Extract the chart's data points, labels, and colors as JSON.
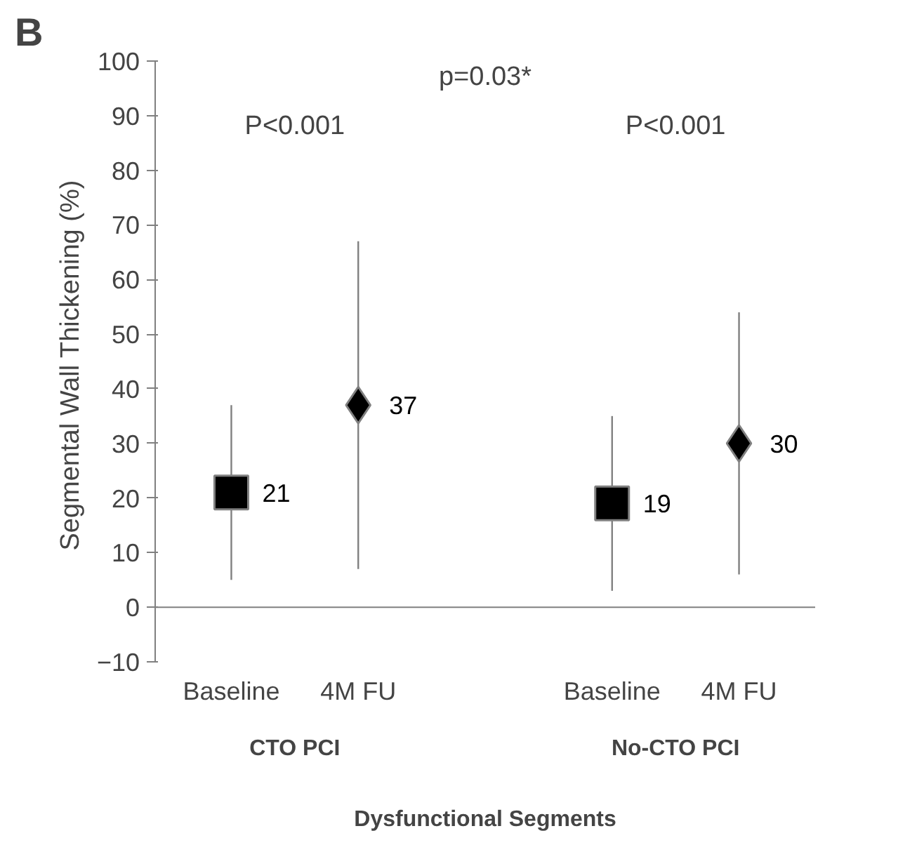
{
  "chart_data": {
    "type": "scatter",
    "xlabel": "Dysfunctional Segments",
    "ylabel": "Segmental Wall Thickening  (%)",
    "categories": [
      "Baseline",
      "4M FU",
      null,
      "Baseline",
      "4M FU"
    ],
    "series": [
      {
        "color": "#000000",
        "marker": "square",
        "values": [
          21,
          null,
          null,
          19,
          null
        ],
        "errors": [
          [
            5,
            37
          ],
          null,
          null,
          [
            3,
            35
          ],
          null
        ]
      },
      {
        "color": "#000000",
        "marker": "diamond",
        "values": [
          null,
          37,
          null,
          null,
          30
        ],
        "errors": [
          null,
          [
            7,
            67
          ],
          null,
          null,
          [
            6,
            54
          ]
        ]
      }
    ],
    "ylim": [
      -10,
      100
    ],
    "yticks": [
      -10,
      0,
      10,
      20,
      30,
      40,
      50,
      60,
      70,
      80,
      90,
      100
    ],
    "ref_lines": [
      {
        "axis": "y",
        "value": 0,
        "color": "#808080"
      }
    ],
    "data_labels": true,
    "grid": false,
    "legend": false,
    "annotations": [
      "B",
      "P<0.001",
      "p=0.03*",
      "P<0.001",
      "CTO PCI",
      "No-CTO PCI"
    ]
  }
}
